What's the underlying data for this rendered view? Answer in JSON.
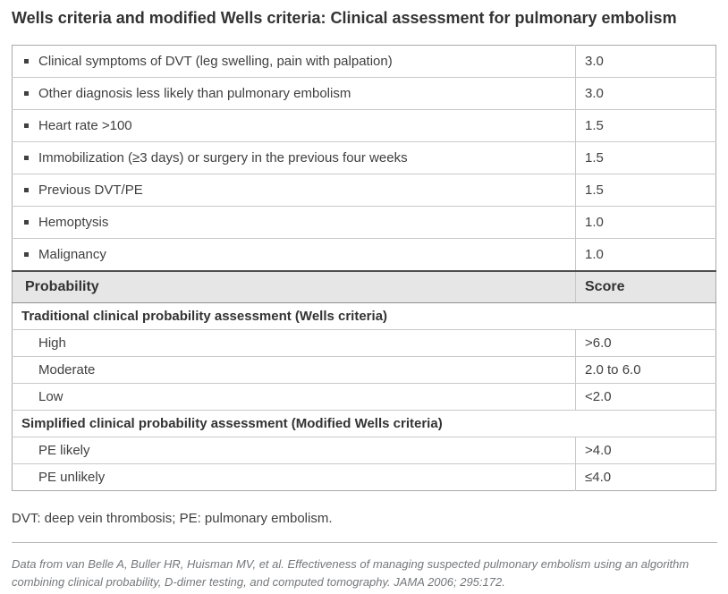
{
  "page": {
    "title": "Wells criteria and modified Wells criteria: Clinical assessment for pulmonary embolism",
    "footnote": "DVT: deep vein thrombosis; PE: pulmonary embolism.",
    "citation": "Data from van Belle A, Buller HR, Huisman MV, et al. Effectiveness of managing suspected pulmonary embolism using an algorithm combining clinical probability, D-dimer testing, and computed tomography. JAMA 2006; 295:172."
  },
  "colors": {
    "title_text": "#333333",
    "body_text": "#404040",
    "header_bg": "#e6e6e6",
    "border_outer": "#a9a9a9",
    "border_inner": "#c9c9c9",
    "border_header": "#4f4f4f",
    "citation_text": "#75787b",
    "divider": "#b5b5b5"
  },
  "table": {
    "column_headers": [
      "Probability",
      "Score"
    ],
    "rows": [
      {
        "type": "criterion",
        "label": "Clinical symptoms of DVT (leg swelling, pain with palpation)",
        "score": "3.0"
      },
      {
        "type": "criterion",
        "label": "Other diagnosis less likely than pulmonary embolism",
        "score": "3.0"
      },
      {
        "type": "criterion",
        "label": "Heart rate >100",
        "score": "1.5"
      },
      {
        "type": "criterion",
        "label": "Immobilization (≥3 days) or surgery in the previous four weeks",
        "score": "1.5"
      },
      {
        "type": "criterion",
        "label": "Previous DVT/PE",
        "score": "1.5"
      },
      {
        "type": "criterion",
        "label": "Hemoptysis",
        "score": "1.0"
      },
      {
        "type": "criterion",
        "label": "Malignancy",
        "score": "1.0"
      },
      {
        "type": "header",
        "label": "Probability",
        "score": "Score"
      },
      {
        "type": "section",
        "label": "Traditional clinical probability assessment (Wells criteria)"
      },
      {
        "type": "sub",
        "label": "High",
        "score": ">6.0"
      },
      {
        "type": "sub",
        "label": "Moderate",
        "score": "2.0 to 6.0"
      },
      {
        "type": "sub",
        "label": "Low",
        "score": "<2.0"
      },
      {
        "type": "section",
        "label": "Simplified clinical probability assessment (Modified Wells criteria)"
      },
      {
        "type": "sub",
        "label": "PE likely",
        "score": ">4.0"
      },
      {
        "type": "sub",
        "label": "PE unlikely",
        "score": "≤4.0"
      }
    ]
  }
}
